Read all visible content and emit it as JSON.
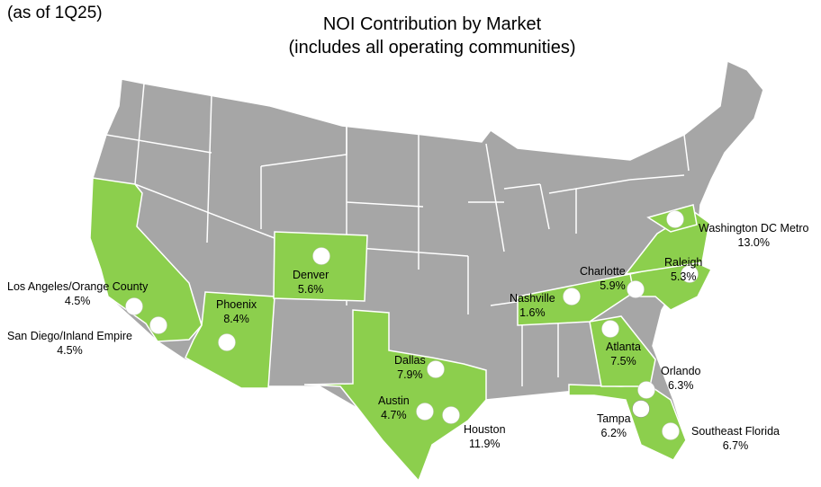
{
  "header": {
    "as_of": "(as of 1Q25)",
    "title": "NOI Contribution by Market",
    "subtitle": "(includes all operating communities)"
  },
  "colors": {
    "market_state": "#8ccf4d",
    "other_state": "#a6a6a6",
    "border": "#ffffff",
    "marker": "#ffffff"
  },
  "markets": [
    {
      "id": "washington-dc-metro",
      "name": "Washington DC Metro",
      "pct": "13.0%"
    },
    {
      "id": "raleigh",
      "name": "Raleigh",
      "pct": "5.3%"
    },
    {
      "id": "charlotte",
      "name": "Charlotte",
      "pct": "5.9%"
    },
    {
      "id": "nashville",
      "name": "Nashville",
      "pct": "1.6%"
    },
    {
      "id": "atlanta",
      "name": "Atlanta",
      "pct": "7.5%"
    },
    {
      "id": "orlando",
      "name": "Orlando",
      "pct": "6.3%"
    },
    {
      "id": "tampa",
      "name": "Tampa",
      "pct": "6.2%"
    },
    {
      "id": "southeast-florida",
      "name": "Southeast Florida",
      "pct": "6.7%"
    },
    {
      "id": "houston",
      "name": "Houston",
      "pct": "11.9%"
    },
    {
      "id": "austin",
      "name": "Austin",
      "pct": "4.7%"
    },
    {
      "id": "dallas",
      "name": "Dallas",
      "pct": "7.9%"
    },
    {
      "id": "denver",
      "name": "Denver",
      "pct": "5.6%"
    },
    {
      "id": "phoenix",
      "name": "Phoenix",
      "pct": "8.4%"
    },
    {
      "id": "los-angeles-orange-county",
      "name": "Los Angeles/Orange County",
      "pct": "4.5%"
    },
    {
      "id": "san-diego-inland-empire",
      "name": "San Diego/Inland Empire",
      "pct": "4.5%"
    }
  ]
}
